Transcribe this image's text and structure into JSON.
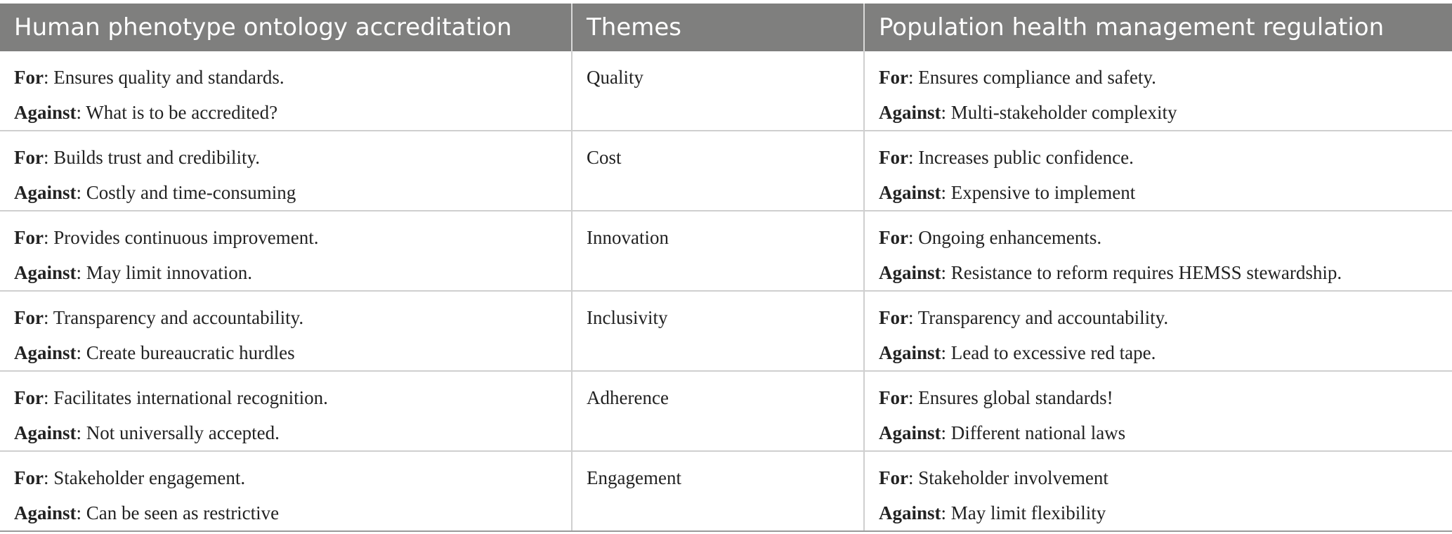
{
  "header": {
    "col1": "Human phenotype ontology accreditation",
    "col2": "Themes",
    "col3": "Population health management regulation"
  },
  "labels": {
    "for": "For",
    "against": "Against"
  },
  "rows": [
    {
      "left_for": ": Ensures quality and standards.",
      "left_against": ": What is to be accredited?",
      "theme": "Quality",
      "right_for": ": Ensures compliance and safety.",
      "right_against": ": Multi-stakeholder complexity"
    },
    {
      "left_for": ": Builds trust and credibility.",
      "left_against": ": Costly and time-consuming",
      "theme": "Cost",
      "right_for": ": Increases public confidence.",
      "right_against": ": Expensive to implement"
    },
    {
      "left_for": ": Provides continuous improvement.",
      "left_against": ": May limit innovation.",
      "theme": "Innovation",
      "right_for": ": Ongoing enhancements.",
      "right_against": ": Resistance to reform requires HEMSS stewardship."
    },
    {
      "left_for": ": Transparency and accountability.",
      "left_against": ": Create bureaucratic hurdles",
      "theme": "Inclusivity",
      "right_for": ": Transparency and accountability.",
      "right_against": ": Lead to excessive red tape."
    },
    {
      "left_for": ": Facilitates international recognition.",
      "left_against": ": Not universally accepted.",
      "theme": "Adherence",
      "right_for": ": Ensures global standards!",
      "right_against": ": Different national laws"
    },
    {
      "left_for": ": Stakeholder engagement.",
      "left_against": ": Can be seen as restrictive",
      "theme": "Engagement",
      "right_for": ": Stakeholder involvement",
      "right_against": ": May limit flexibility"
    }
  ]
}
